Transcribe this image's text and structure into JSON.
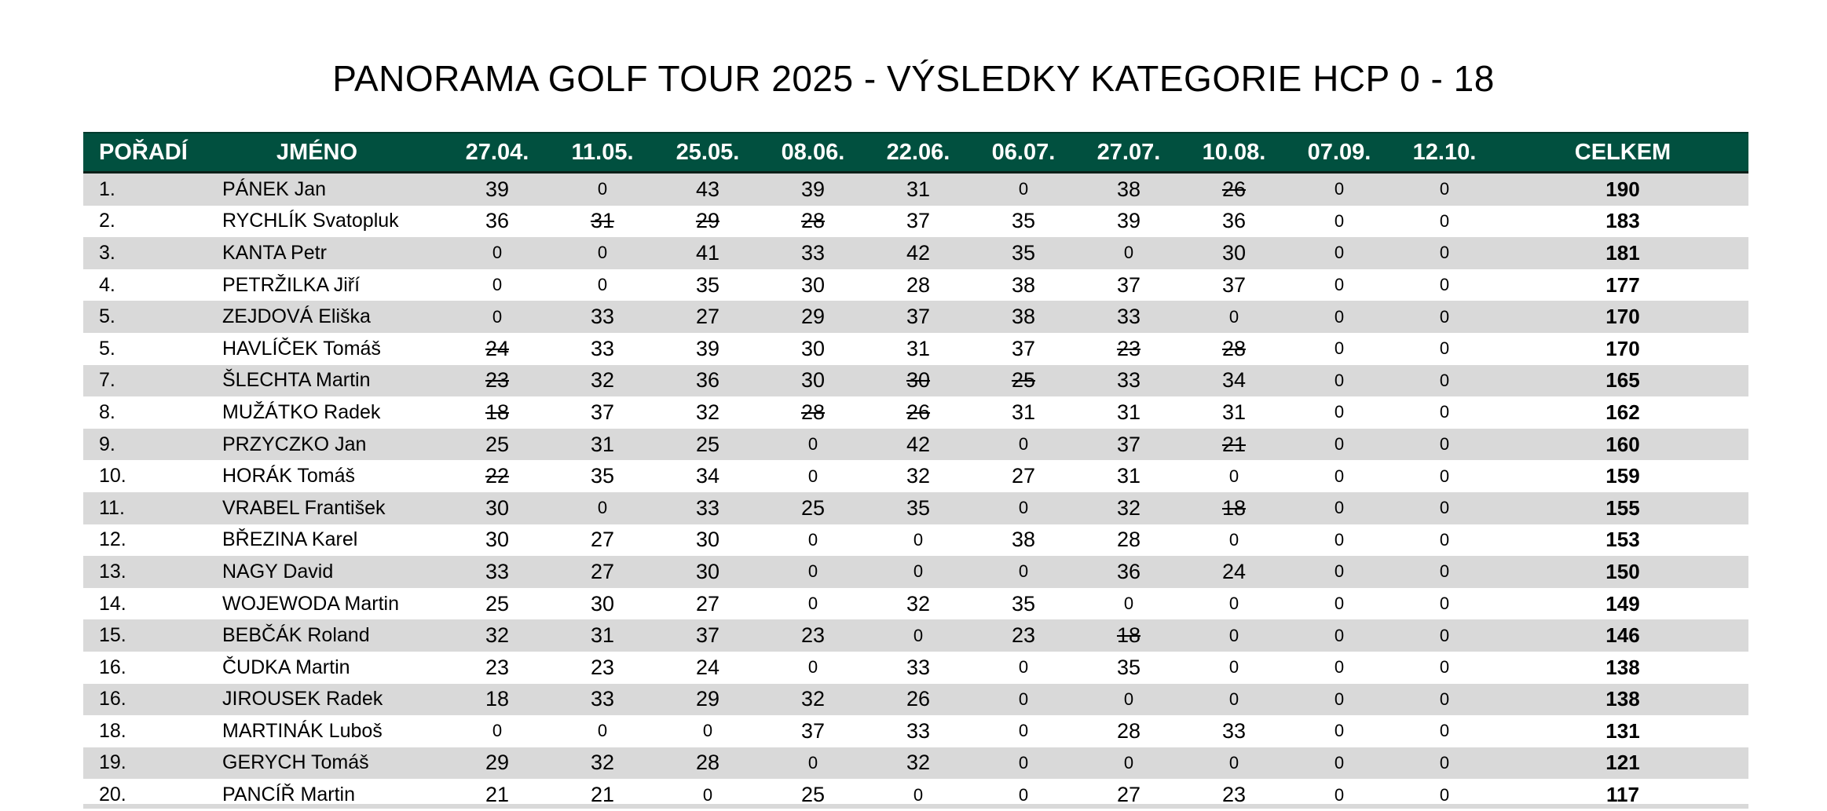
{
  "title": "PANORAMA GOLF TOUR 2025 - VÝSLEDKY KATEGORIE HCP 0 - 18",
  "colors": {
    "header_bg": "#01503f",
    "header_text": "#ffffff",
    "row_alt": "#d9d9d9"
  },
  "columns": [
    "POŘADÍ",
    "JMÉNO",
    "27.04.",
    "11.05.",
    "25.05.",
    "08.06.",
    "22.06.",
    "06.07.",
    "27.07.",
    "10.08.",
    "07.09.",
    "12.10.",
    "CELKEM"
  ],
  "rows": [
    {
      "rank": "1.",
      "name": "PÁNEK Jan",
      "scores": [
        "39",
        "0",
        "43",
        "39",
        "31",
        "0",
        "38",
        "26",
        "0",
        "0"
      ],
      "struck": [
        7
      ],
      "total": "190"
    },
    {
      "rank": "2.",
      "name": "RYCHLÍK Svatopluk",
      "scores": [
        "36",
        "31",
        "29",
        "28",
        "37",
        "35",
        "39",
        "36",
        "0",
        "0"
      ],
      "struck": [
        1,
        2,
        3
      ],
      "total": "183"
    },
    {
      "rank": "3.",
      "name": "KANTA Petr",
      "scores": [
        "0",
        "0",
        "41",
        "33",
        "42",
        "35",
        "0",
        "30",
        "0",
        "0"
      ],
      "struck": [],
      "total": "181"
    },
    {
      "rank": "4.",
      "name": "PETRŽILKA Jiří",
      "scores": [
        "0",
        "0",
        "35",
        "30",
        "28",
        "38",
        "37",
        "37",
        "0",
        "0"
      ],
      "struck": [],
      "total": "177"
    },
    {
      "rank": "5.",
      "name": "ZEJDOVÁ Eliška",
      "scores": [
        "0",
        "33",
        "27",
        "29",
        "37",
        "38",
        "33",
        "0",
        "0",
        "0"
      ],
      "struck": [],
      "total": "170"
    },
    {
      "rank": "5.",
      "name": "HAVLÍČEK Tomáš",
      "scores": [
        "24",
        "33",
        "39",
        "30",
        "31",
        "37",
        "23",
        "28",
        "0",
        "0"
      ],
      "struck": [
        0,
        6,
        7
      ],
      "total": "170"
    },
    {
      "rank": "7.",
      "name": "ŠLECHTA Martin",
      "scores": [
        "23",
        "32",
        "36",
        "30",
        "30",
        "25",
        "33",
        "34",
        "0",
        "0"
      ],
      "struck": [
        0,
        4,
        5
      ],
      "total": "165"
    },
    {
      "rank": "8.",
      "name": "MUŽÁTKO Radek",
      "scores": [
        "18",
        "37",
        "32",
        "28",
        "26",
        "31",
        "31",
        "31",
        "0",
        "0"
      ],
      "struck": [
        0,
        3,
        4
      ],
      "total": "162"
    },
    {
      "rank": "9.",
      "name": "PRZYCZKO Jan",
      "scores": [
        "25",
        "31",
        "25",
        "0",
        "42",
        "0",
        "37",
        "21",
        "0",
        "0"
      ],
      "struck": [
        7
      ],
      "total": "160"
    },
    {
      "rank": "10.",
      "name": "HORÁK Tomáš",
      "scores": [
        "22",
        "35",
        "34",
        "0",
        "32",
        "27",
        "31",
        "0",
        "0",
        "0"
      ],
      "struck": [
        0
      ],
      "total": "159"
    },
    {
      "rank": "11.",
      "name": "VRABEL František",
      "scores": [
        "30",
        "0",
        "33",
        "25",
        "35",
        "0",
        "32",
        "18",
        "0",
        "0"
      ],
      "struck": [
        7
      ],
      "total": "155"
    },
    {
      "rank": "12.",
      "name": "BŘEZINA Karel",
      "scores": [
        "30",
        "27",
        "30",
        "0",
        "0",
        "38",
        "28",
        "0",
        "0",
        "0"
      ],
      "struck": [],
      "total": "153"
    },
    {
      "rank": "13.",
      "name": "NAGY David",
      "scores": [
        "33",
        "27",
        "30",
        "0",
        "0",
        "0",
        "36",
        "24",
        "0",
        "0"
      ],
      "struck": [],
      "total": "150"
    },
    {
      "rank": "14.",
      "name": "WOJEWODA Martin",
      "scores": [
        "25",
        "30",
        "27",
        "0",
        "32",
        "35",
        "0",
        "0",
        "0",
        "0"
      ],
      "struck": [],
      "total": "149"
    },
    {
      "rank": "15.",
      "name": "BEBČÁK Roland",
      "scores": [
        "32",
        "31",
        "37",
        "23",
        "0",
        "23",
        "18",
        "0",
        "0",
        "0"
      ],
      "struck": [
        6
      ],
      "total": "146"
    },
    {
      "rank": "16.",
      "name": "ČUDKA Martin",
      "scores": [
        "23",
        "23",
        "24",
        "0",
        "33",
        "0",
        "35",
        "0",
        "0",
        "0"
      ],
      "struck": [],
      "total": "138"
    },
    {
      "rank": "16.",
      "name": "JIROUSEK Radek",
      "scores": [
        "18",
        "33",
        "29",
        "32",
        "26",
        "0",
        "0",
        "0",
        "0",
        "0"
      ],
      "struck": [],
      "total": "138"
    },
    {
      "rank": "18.",
      "name": "MARTINÁK Luboš",
      "scores": [
        "0",
        "0",
        "0",
        "37",
        "33",
        "0",
        "28",
        "33",
        "0",
        "0"
      ],
      "struck": [],
      "total": "131"
    },
    {
      "rank": "19.",
      "name": "GERYCH Tomáš",
      "scores": [
        "29",
        "32",
        "28",
        "0",
        "32",
        "0",
        "0",
        "0",
        "0",
        "0"
      ],
      "struck": [],
      "total": "121"
    },
    {
      "rank": "20.",
      "name": "PANCÍŘ Martin",
      "scores": [
        "21",
        "21",
        "0",
        "25",
        "0",
        "0",
        "27",
        "23",
        "0",
        "0"
      ],
      "struck": [],
      "total": "117"
    }
  ]
}
